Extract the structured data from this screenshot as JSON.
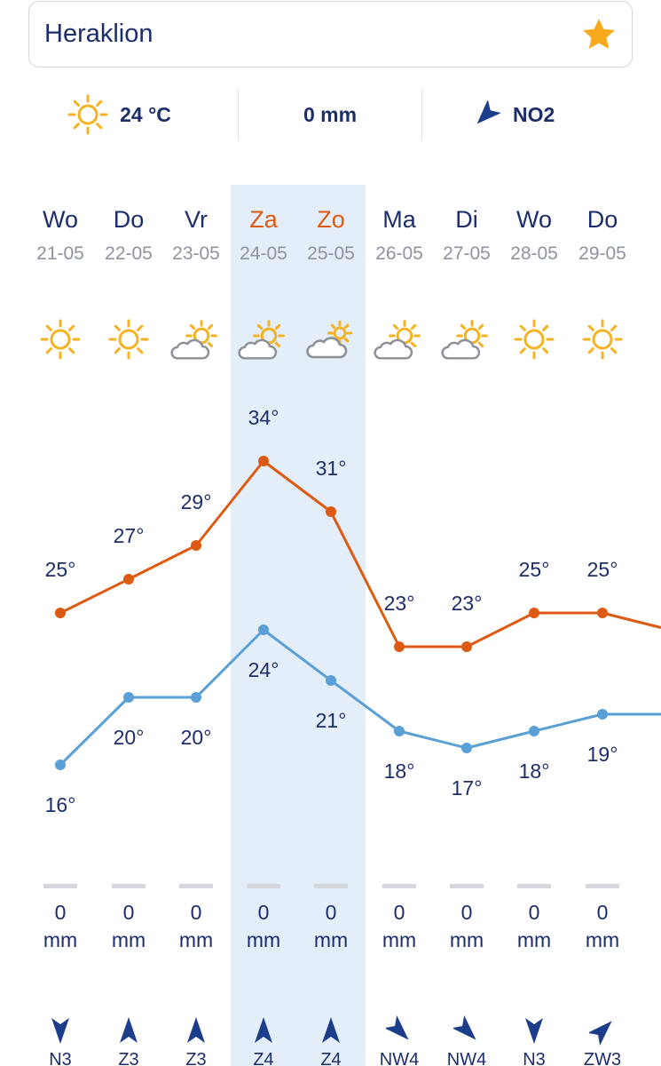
{
  "search": {
    "city": "Heraklion",
    "favorite_icon": "star-icon"
  },
  "summary": {
    "temperature": "24 °C",
    "precipitation": "0 mm",
    "wind": "NO2"
  },
  "colors": {
    "max_line": "#dd5a12",
    "min_line": "#5a9fd6",
    "text": "#1c2d6b",
    "weekend": "#dd5a12",
    "band": "#e3eef8"
  },
  "days": [
    {
      "name": "Wo",
      "date": "21-05",
      "weekend": false,
      "icon": "sun",
      "max": "25°",
      "min": "16°",
      "precip": "0",
      "precip_unit": "mm",
      "wind": "N3",
      "wind_dir": 180
    },
    {
      "name": "Do",
      "date": "22-05",
      "weekend": false,
      "icon": "sun",
      "max": "27°",
      "min": "20°",
      "precip": "0",
      "precip_unit": "mm",
      "wind": "Z3",
      "wind_dir": 0
    },
    {
      "name": "Vr",
      "date": "23-05",
      "weekend": false,
      "icon": "partly-cloudy",
      "max": "29°",
      "min": "20°",
      "precip": "0",
      "precip_unit": "mm",
      "wind": "Z3",
      "wind_dir": 0
    },
    {
      "name": "Za",
      "date": "24-05",
      "weekend": true,
      "icon": "partly-cloudy",
      "max": "34°",
      "min": "24°",
      "precip": "0",
      "precip_unit": "mm",
      "wind": "Z4",
      "wind_dir": 0
    },
    {
      "name": "Zo",
      "date": "25-05",
      "weekend": true,
      "icon": "cloudy-sun",
      "max": "31°",
      "min": "21°",
      "precip": "0",
      "precip_unit": "mm",
      "wind": "Z4",
      "wind_dir": 0
    },
    {
      "name": "Ma",
      "date": "26-05",
      "weekend": false,
      "icon": "partly-cloudy",
      "max": "23°",
      "min": "18°",
      "precip": "0",
      "precip_unit": "mm",
      "wind": "NW4",
      "wind_dir": 135
    },
    {
      "name": "Di",
      "date": "27-05",
      "weekend": false,
      "icon": "partly-cloudy",
      "max": "23°",
      "min": "17°",
      "precip": "0",
      "precip_unit": "mm",
      "wind": "NW4",
      "wind_dir": 135
    },
    {
      "name": "Wo",
      "date": "28-05",
      "weekend": false,
      "icon": "sun",
      "max": "25°",
      "min": "18°",
      "precip": "0",
      "precip_unit": "mm",
      "wind": "N3",
      "wind_dir": 180
    },
    {
      "name": "Do",
      "date": "29-05",
      "weekend": false,
      "icon": "sun",
      "max": "25°",
      "min": "19°",
      "precip": "0",
      "precip_unit": "mm",
      "wind": "ZW3",
      "wind_dir": 45
    }
  ],
  "chart_data": {
    "type": "line",
    "x": [
      "21-05",
      "22-05",
      "23-05",
      "24-05",
      "25-05",
      "26-05",
      "27-05",
      "28-05",
      "29-05"
    ],
    "series": [
      {
        "values": [
          25,
          27,
          29,
          34,
          31,
          23,
          23,
          25,
          25
        ],
        "next_value": 24
      },
      {
        "values": [
          16,
          20,
          20,
          24,
          21,
          18,
          17,
          18,
          19
        ],
        "next_value": 19
      }
    ]
  }
}
